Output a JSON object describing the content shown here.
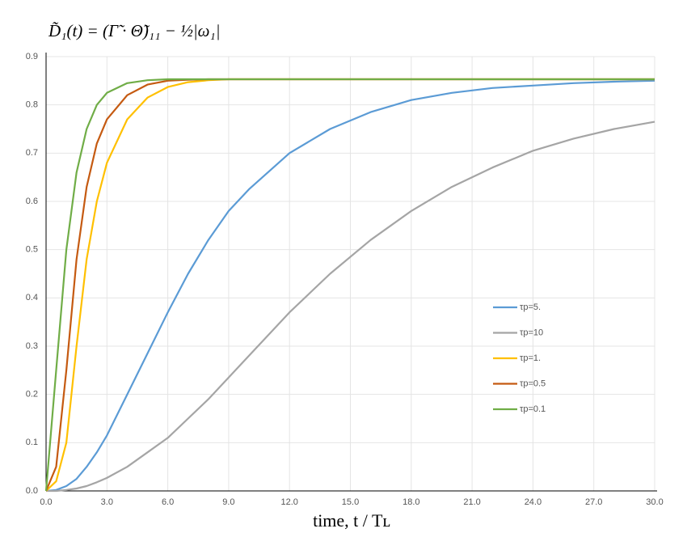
{
  "chart_data": {
    "type": "line",
    "title": "D̃₁(t) = (Γ̃ · Θ̃)₁₁ − ½|ω₁|",
    "x_label": "time, t / Tʟ",
    "x": [
      0,
      0.5,
      1,
      1.5,
      2,
      2.5,
      3,
      4,
      5,
      6,
      7,
      8,
      9,
      10,
      12,
      14,
      16,
      18,
      20,
      22,
      24,
      26,
      28,
      30
    ],
    "series": [
      {
        "name": "τp=5.",
        "color": "#5b9bd5",
        "values": [
          0,
          0.002,
          0.01,
          0.025,
          0.05,
          0.08,
          0.115,
          0.2,
          0.285,
          0.37,
          0.45,
          0.52,
          0.58,
          0.625,
          0.7,
          0.75,
          0.785,
          0.81,
          0.825,
          0.835,
          0.84,
          0.845,
          0.848,
          0.85
        ]
      },
      {
        "name": "τp=10",
        "color": "#a5a5a5",
        "values": [
          0,
          0,
          0.002,
          0.005,
          0.01,
          0.018,
          0.027,
          0.05,
          0.08,
          0.11,
          0.15,
          0.19,
          0.235,
          0.28,
          0.37,
          0.45,
          0.52,
          0.58,
          0.63,
          0.67,
          0.705,
          0.73,
          0.75,
          0.765
        ]
      },
      {
        "name": "τp=1.",
        "color": "#ffc000",
        "values": [
          0,
          0.02,
          0.1,
          0.3,
          0.48,
          0.6,
          0.68,
          0.77,
          0.815,
          0.837,
          0.847,
          0.851,
          0.853,
          0.853,
          0.853,
          0.853,
          0.853,
          0.853,
          0.853,
          0.853,
          0.853,
          0.853,
          0.853,
          0.853
        ]
      },
      {
        "name": "τp=0.5",
        "color": "#c55a11",
        "values": [
          0,
          0.05,
          0.25,
          0.48,
          0.63,
          0.72,
          0.77,
          0.82,
          0.842,
          0.85,
          0.852,
          0.853,
          0.853,
          0.853,
          0.853,
          0.853,
          0.853,
          0.853,
          0.853,
          0.853,
          0.853,
          0.853,
          0.853,
          0.853
        ]
      },
      {
        "name": "τp=0.1",
        "color": "#70ad47",
        "values": [
          0,
          0.25,
          0.5,
          0.66,
          0.75,
          0.8,
          0.825,
          0.845,
          0.851,
          0.853,
          0.853,
          0.853,
          0.853,
          0.853,
          0.853,
          0.853,
          0.853,
          0.853,
          0.853,
          0.853,
          0.853,
          0.853,
          0.853,
          0.853
        ]
      }
    ],
    "xlim": [
      0,
      30
    ],
    "ylim": [
      0,
      0.9
    ],
    "xticks": [
      {
        "value": 0,
        "label": "0.0"
      },
      {
        "value": 3,
        "label": "3.0"
      },
      {
        "value": 6,
        "label": "6.0"
      },
      {
        "value": 9,
        "label": "9.0"
      },
      {
        "value": 12,
        "label": "12.0"
      },
      {
        "value": 15,
        "label": "15.0"
      },
      {
        "value": 18,
        "label": "18.0"
      },
      {
        "value": 21,
        "label": "21.0"
      },
      {
        "value": 24,
        "label": "24.0"
      },
      {
        "value": 27,
        "label": "27.0"
      },
      {
        "value": 30,
        "label": "30.0"
      }
    ],
    "yticks": [
      {
        "value": 0,
        "label": "0.0"
      },
      0.1,
      0.2,
      0.3,
      0.4,
      0.5,
      0.6,
      0.7,
      0.8,
      0.9
    ],
    "grid": true
  }
}
